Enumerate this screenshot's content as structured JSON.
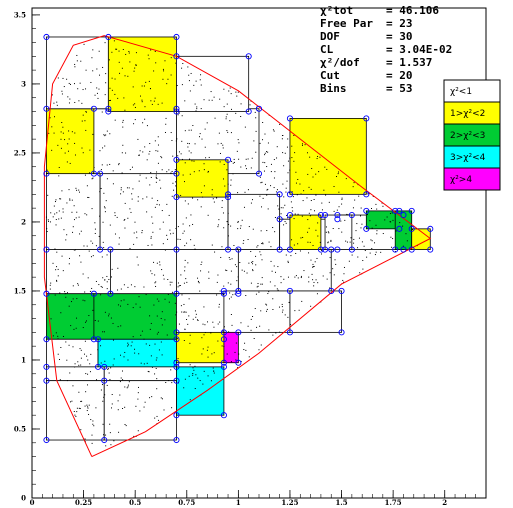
{
  "chart_data": {
    "type": "scatter",
    "title": "",
    "xlabel": "",
    "ylabel": "",
    "xlim": [
      0,
      2.2
    ],
    "ylim": [
      0,
      3.55
    ],
    "x_ticks": [
      "0",
      "0.25",
      "0.5",
      "0.75",
      "1",
      "1.25",
      "1.5",
      "1.75",
      "2"
    ],
    "y_ticks": [
      "0",
      "0.5",
      "1",
      "1.5",
      "2",
      "2.5",
      "3",
      "3.5"
    ],
    "stats": [
      {
        "label": "χ²tot",
        "value": "= 46.106"
      },
      {
        "label": "Free Par",
        "value": "= 23"
      },
      {
        "label": "DOF",
        "value": "= 30"
      },
      {
        "label": "CL",
        "value": "= 3.04E-02"
      },
      {
        "label": "χ²/dof",
        "value": "= 1.537"
      },
      {
        "label": "Cut",
        "value": "= 20"
      },
      {
        "label": "Bins",
        "value": "= 53"
      }
    ],
    "legend": [
      {
        "label": "χ²<1",
        "color": "#ffffff"
      },
      {
        "label": "1>χ²<2",
        "color": "#ffff00"
      },
      {
        "label": "2>χ²<3",
        "color": "#00cc33"
      },
      {
        "label": "3>χ²<4",
        "color": "#00ffff"
      },
      {
        "label": "χ²>4",
        "color": "#ff00ff"
      }
    ],
    "boundary_curve": [
      [
        0.29,
        0.3
      ],
      [
        0.12,
        0.85
      ],
      [
        0.06,
        1.6
      ],
      [
        0.06,
        2.4
      ],
      [
        0.1,
        3.0
      ],
      [
        0.2,
        3.28
      ],
      [
        0.35,
        3.35
      ],
      [
        0.7,
        3.2
      ],
      [
        1.0,
        2.95
      ],
      [
        1.3,
        2.6
      ],
      [
        1.6,
        2.25
      ],
      [
        1.93,
        1.88
      ],
      [
        1.5,
        1.55
      ],
      [
        1.1,
        1.05
      ],
      [
        0.85,
        0.78
      ],
      [
        0.55,
        0.48
      ],
      [
        0.29,
        0.3
      ]
    ],
    "bins": [
      {
        "x": [
          0.07,
          0.38
        ],
        "y": [
          1.48,
          1.8
        ],
        "fill": "white"
      },
      {
        "x": [
          0.38,
          0.7
        ],
        "y": [
          1.48,
          1.8
        ],
        "fill": "white"
      },
      {
        "x": [
          0.7,
          1.0
        ],
        "y": [
          1.48,
          1.8
        ],
        "fill": "white"
      },
      {
        "x": [
          1.0,
          1.45
        ],
        "y": [
          1.5,
          1.8
        ],
        "fill": "white"
      },
      {
        "x": [
          0.07,
          0.33
        ],
        "y": [
          1.8,
          2.35
        ],
        "fill": "white"
      },
      {
        "x": [
          0.33,
          0.7
        ],
        "y": [
          1.8,
          2.35
        ],
        "fill": "white"
      },
      {
        "x": [
          0.7,
          0.95
        ],
        "y": [
          1.8,
          2.18
        ],
        "fill": "white"
      },
      {
        "x": [
          0.95,
          1.2
        ],
        "y": [
          1.8,
          2.2
        ],
        "fill": "white"
      },
      {
        "x": [
          1.2,
          1.48
        ],
        "y": [
          1.8,
          2.02
        ],
        "fill": "white"
      },
      {
        "x": [
          1.48,
          1.8
        ],
        "y": [
          1.8,
          2.05
        ],
        "fill": "white"
      },
      {
        "x": [
          0.07,
          0.3
        ],
        "y": [
          2.35,
          2.82
        ],
        "fill": "yellow"
      },
      {
        "x": [
          0.3,
          0.7
        ],
        "y": [
          2.35,
          2.82
        ],
        "fill": "white"
      },
      {
        "x": [
          0.7,
          1.1
        ],
        "y": [
          2.35,
          2.82
        ],
        "fill": "white"
      },
      {
        "x": [
          0.07,
          0.37
        ],
        "y": [
          2.82,
          3.34
        ],
        "fill": "white"
      },
      {
        "x": [
          0.37,
          0.7
        ],
        "y": [
          2.8,
          3.34
        ],
        "fill": "yellow"
      },
      {
        "x": [
          0.7,
          1.05
        ],
        "y": [
          2.8,
          3.2
        ],
        "fill": "white"
      },
      {
        "x": [
          0.7,
          0.95
        ],
        "y": [
          2.18,
          2.45
        ],
        "fill": "yellow"
      },
      {
        "x": [
          1.25,
          1.62
        ],
        "y": [
          2.2,
          2.75
        ],
        "fill": "yellow"
      },
      {
        "x": [
          1.25,
          1.4
        ],
        "y": [
          1.8,
          2.05
        ],
        "fill": "yellow"
      },
      {
        "x": [
          1.42,
          1.55
        ],
        "y": [
          1.8,
          2.05
        ],
        "fill": "white"
      },
      {
        "x": [
          1.62,
          1.78
        ],
        "y": [
          1.95,
          2.08
        ],
        "fill": "green"
      },
      {
        "x": [
          1.76,
          1.84
        ],
        "y": [
          1.8,
          2.08
        ],
        "fill": "green"
      },
      {
        "x": [
          1.84,
          1.93
        ],
        "y": [
          1.8,
          1.95
        ],
        "fill": "yellow"
      },
      {
        "x": [
          0.07,
          0.3
        ],
        "y": [
          1.15,
          1.48
        ],
        "fill": "green"
      },
      {
        "x": [
          0.3,
          0.7
        ],
        "y": [
          1.15,
          1.48
        ],
        "fill": "green"
      },
      {
        "x": [
          0.7,
          0.93
        ],
        "y": [
          1.15,
          1.48
        ],
        "fill": "white"
      },
      {
        "x": [
          0.93,
          1.25
        ],
        "y": [
          1.2,
          1.5
        ],
        "fill": "white"
      },
      {
        "x": [
          1.25,
          1.5
        ],
        "y": [
          1.2,
          1.5
        ],
        "fill": "white"
      },
      {
        "x": [
          0.07,
          0.32
        ],
        "y": [
          0.95,
          1.15
        ],
        "fill": "white"
      },
      {
        "x": [
          0.32,
          0.7
        ],
        "y": [
          0.95,
          1.15
        ],
        "fill": "cyan"
      },
      {
        "x": [
          0.7,
          0.93
        ],
        "y": [
          0.98,
          1.2
        ],
        "fill": "yellow"
      },
      {
        "x": [
          0.93,
          1.0
        ],
        "y": [
          0.98,
          1.2
        ],
        "fill": "magenta"
      },
      {
        "x": [
          0.07,
          0.35
        ],
        "y": [
          0.85,
          0.95
        ],
        "fill": "white"
      },
      {
        "x": [
          0.35,
          0.7
        ],
        "y": [
          0.85,
          0.95
        ],
        "fill": "white"
      },
      {
        "x": [
          0.7,
          0.93
        ],
        "y": [
          0.6,
          0.95
        ],
        "fill": "cyan"
      },
      {
        "x": [
          0.07,
          0.35
        ],
        "y": [
          0.42,
          0.85
        ],
        "fill": "white"
      },
      {
        "x": [
          0.35,
          0.7
        ],
        "y": [
          0.42,
          0.85
        ],
        "fill": "white"
      }
    ]
  }
}
